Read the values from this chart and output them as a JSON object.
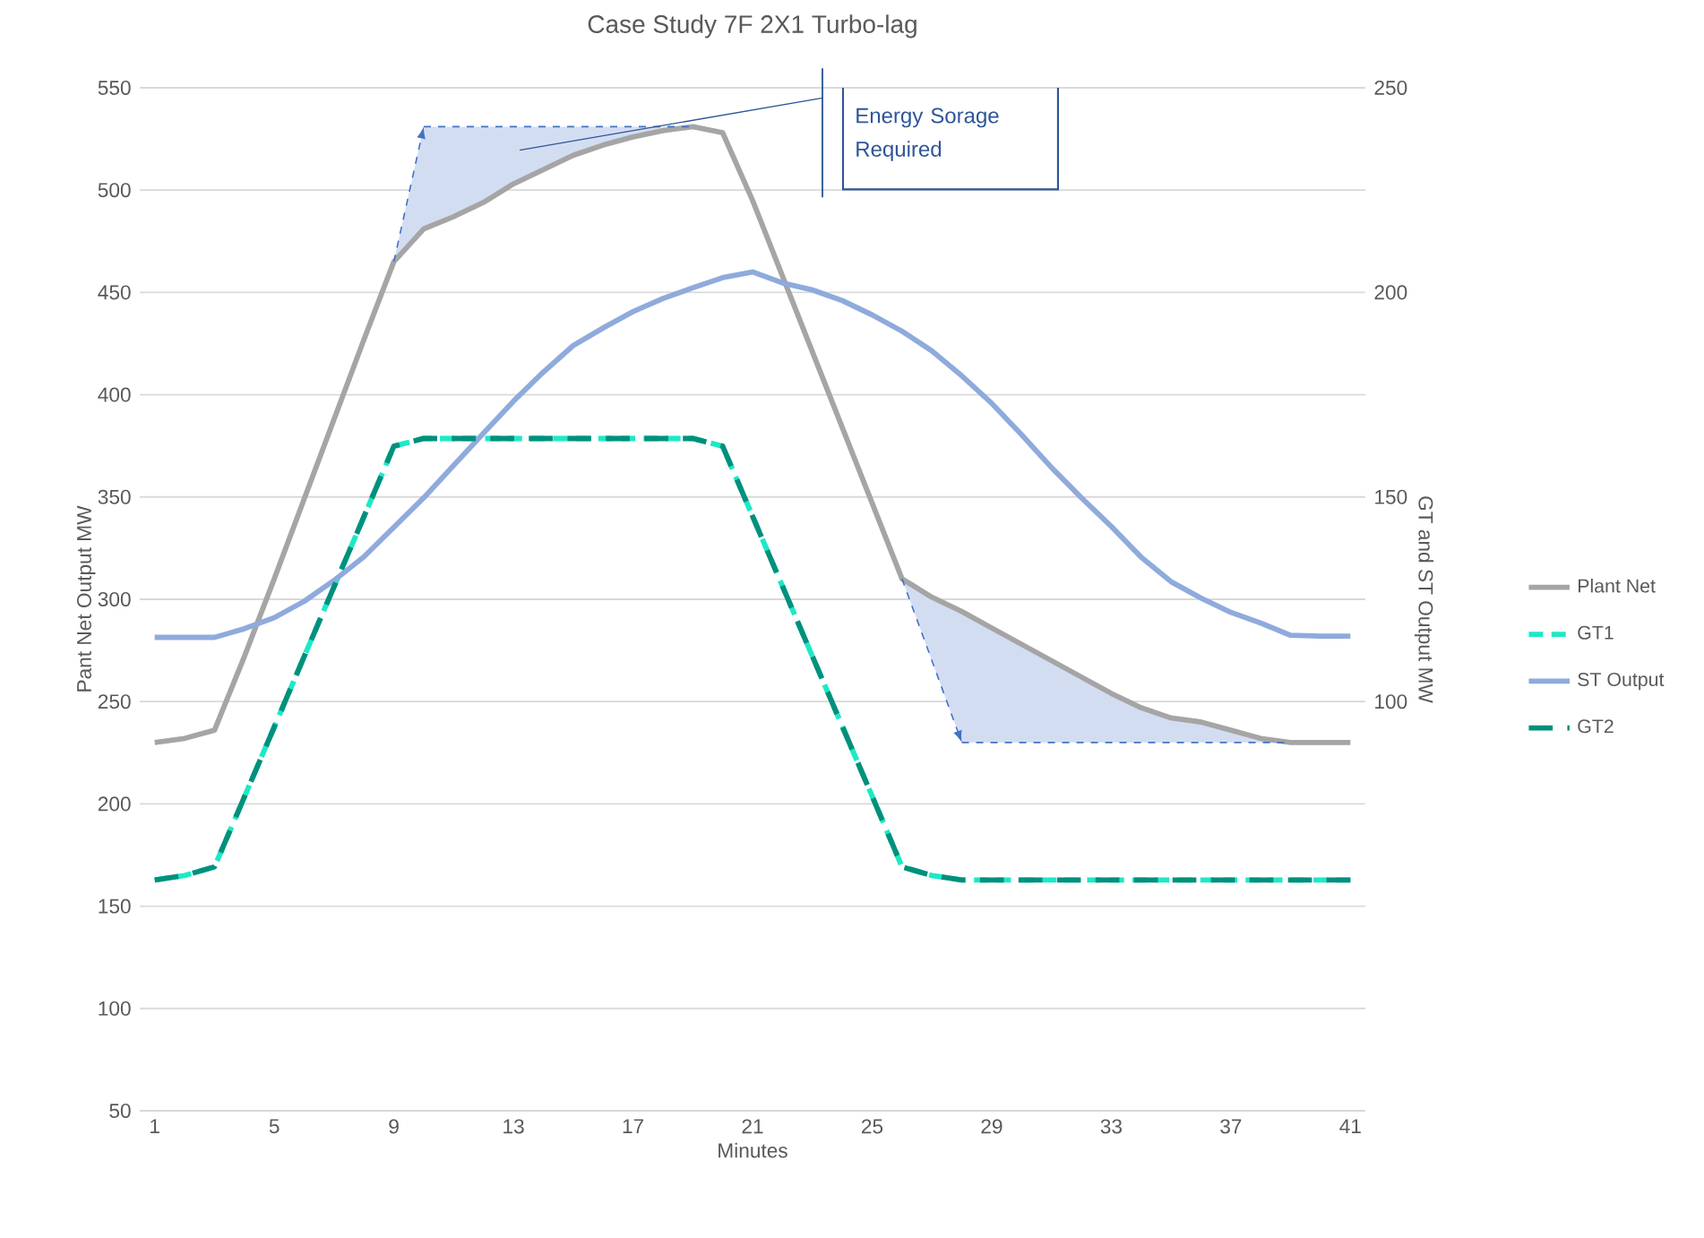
{
  "chart_data": {
    "type": "line",
    "title": "Case Study 7F 2X1 Turbo-lag",
    "xlabel": "Minutes",
    "ylabel": "Pant Net Output MW",
    "y2label": "GT and ST Output MW",
    "x": [
      1,
      2,
      3,
      4,
      5,
      6,
      7,
      8,
      9,
      10,
      11,
      12,
      13,
      14,
      15,
      16,
      17,
      18,
      19,
      20,
      21,
      22,
      23,
      24,
      25,
      26,
      27,
      28,
      29,
      30,
      31,
      32,
      33,
      34,
      35,
      36,
      37,
      38,
      39,
      40,
      41
    ],
    "xlim": [
      0.5,
      41.5
    ],
    "xticks": [
      1,
      5,
      9,
      13,
      17,
      21,
      25,
      29,
      33,
      37,
      41
    ],
    "ylim": [
      50,
      550
    ],
    "yticks": [
      50,
      100,
      150,
      200,
      250,
      300,
      350,
      400,
      450,
      500,
      550
    ],
    "y2lim": [
      0,
      250
    ],
    "y2ticks": [
      100,
      150,
      200,
      250
    ],
    "grid": "y",
    "legend": "right",
    "annotations": [
      "Energy Sorage Required"
    ],
    "series": [
      {
        "name": "Plant Net",
        "color": "#a5a5a5",
        "line_style": "solid",
        "values": [
          230,
          232,
          236,
          272,
          310,
          349,
          388,
          427,
          465,
          481,
          487,
          494,
          503,
          510,
          517,
          522,
          526,
          529,
          531,
          528,
          495,
          458,
          421,
          384,
          347,
          310,
          301,
          294,
          286,
          278,
          270,
          262,
          254,
          247,
          242,
          240,
          236,
          232,
          230,
          230,
          230
        ],
        "lower": [
          null,
          null,
          null,
          null,
          null,
          null,
          null,
          null,
          465,
          481,
          487,
          494,
          503,
          510,
          517,
          522,
          526,
          529,
          531,
          null,
          null,
          null,
          null,
          null,
          null,
          310,
          270,
          230,
          230,
          230,
          230,
          230,
          230,
          230,
          230,
          230,
          230,
          230,
          230,
          230,
          null
        ],
        "upper": [
          null,
          null,
          null,
          null,
          null,
          null,
          null,
          null,
          465,
          531,
          531,
          531,
          531,
          531,
          531,
          531,
          531,
          531,
          531,
          null,
          null,
          null,
          null,
          null,
          null,
          310,
          301,
          294,
          286,
          278,
          270,
          262,
          254,
          247,
          242,
          240,
          236,
          232,
          230,
          230,
          null
        ]
      },
      {
        "name": "GT1",
        "color": "#1de9c6",
        "line_style": "dashed",
        "axis": "y2",
        "values": [
          56.4,
          57.5,
          59.6,
          76.7,
          93.8,
          111,
          128.1,
          145.2,
          162.4,
          164.3,
          164.3,
          164.3,
          164.3,
          164.3,
          164.3,
          164.3,
          164.3,
          164.3,
          164.3,
          162.4,
          145.3,
          128.2,
          111.1,
          94,
          76.9,
          59.6,
          57.5,
          56.4,
          56.4,
          56.4,
          56.4,
          56.4,
          56.4,
          56.4,
          56.4,
          56.4,
          56.4,
          56.4,
          56.4,
          56.4,
          56.4
        ]
      },
      {
        "name": "ST Output",
        "color": "#8faadc",
        "line_style": "solid",
        "axis": "y2",
        "values": [
          115.7,
          115.7,
          115.7,
          117.8,
          120.5,
          124.5,
          129.6,
          135.4,
          142.6,
          149.8,
          157.7,
          165.6,
          173.4,
          180.5,
          187,
          191.3,
          195.3,
          198.5,
          201.1,
          203.6,
          205,
          202.3,
          200.6,
          198,
          194.5,
          190.5,
          185.7,
          179.6,
          172.9,
          165.2,
          157.2,
          149.8,
          142.8,
          135.3,
          129.3,
          125.3,
          121.8,
          119.2,
          116.2,
          116,
          116
        ]
      },
      {
        "name": "GT2",
        "color": "#00907c",
        "line_style": "dashed",
        "axis": "y2",
        "values": [
          56.4,
          57.5,
          59.6,
          76.7,
          93.8,
          111,
          128.1,
          145.2,
          162.4,
          164.3,
          164.3,
          164.3,
          164.3,
          164.3,
          164.3,
          164.3,
          164.3,
          164.3,
          164.3,
          162.4,
          145.3,
          128.2,
          111.1,
          94,
          76.9,
          59.6,
          57.5,
          56.4,
          56.4,
          56.4,
          56.4,
          56.4,
          56.4,
          56.4,
          56.4,
          56.4,
          56.4,
          56.4,
          56.4,
          56.4,
          56.4
        ]
      }
    ]
  }
}
